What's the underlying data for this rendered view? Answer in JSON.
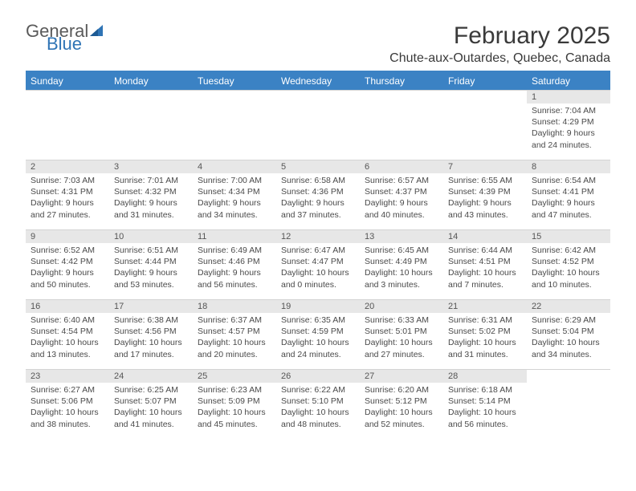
{
  "brand": {
    "word1": "General",
    "word2": "Blue",
    "color_gray": "#5a5a5a",
    "color_blue": "#2f74b5"
  },
  "title": "February 2025",
  "location": "Chute-aux-Outardes, Quebec, Canada",
  "header_bg": "#3b82c4",
  "daynum_bg": "#e7e7e7",
  "text_color": "#4a4a4a",
  "weekdays": [
    "Sunday",
    "Monday",
    "Tuesday",
    "Wednesday",
    "Thursday",
    "Friday",
    "Saturday"
  ],
  "weeks": [
    [
      null,
      null,
      null,
      null,
      null,
      null,
      {
        "n": "1",
        "sr": "7:04 AM",
        "ss": "4:29 PM",
        "dl": "9 hours and 24 minutes."
      }
    ],
    [
      {
        "n": "2",
        "sr": "7:03 AM",
        "ss": "4:31 PM",
        "dl": "9 hours and 27 minutes."
      },
      {
        "n": "3",
        "sr": "7:01 AM",
        "ss": "4:32 PM",
        "dl": "9 hours and 31 minutes."
      },
      {
        "n": "4",
        "sr": "7:00 AM",
        "ss": "4:34 PM",
        "dl": "9 hours and 34 minutes."
      },
      {
        "n": "5",
        "sr": "6:58 AM",
        "ss": "4:36 PM",
        "dl": "9 hours and 37 minutes."
      },
      {
        "n": "6",
        "sr": "6:57 AM",
        "ss": "4:37 PM",
        "dl": "9 hours and 40 minutes."
      },
      {
        "n": "7",
        "sr": "6:55 AM",
        "ss": "4:39 PM",
        "dl": "9 hours and 43 minutes."
      },
      {
        "n": "8",
        "sr": "6:54 AM",
        "ss": "4:41 PM",
        "dl": "9 hours and 47 minutes."
      }
    ],
    [
      {
        "n": "9",
        "sr": "6:52 AM",
        "ss": "4:42 PM",
        "dl": "9 hours and 50 minutes."
      },
      {
        "n": "10",
        "sr": "6:51 AM",
        "ss": "4:44 PM",
        "dl": "9 hours and 53 minutes."
      },
      {
        "n": "11",
        "sr": "6:49 AM",
        "ss": "4:46 PM",
        "dl": "9 hours and 56 minutes."
      },
      {
        "n": "12",
        "sr": "6:47 AM",
        "ss": "4:47 PM",
        "dl": "10 hours and 0 minutes."
      },
      {
        "n": "13",
        "sr": "6:45 AM",
        "ss": "4:49 PM",
        "dl": "10 hours and 3 minutes."
      },
      {
        "n": "14",
        "sr": "6:44 AM",
        "ss": "4:51 PM",
        "dl": "10 hours and 7 minutes."
      },
      {
        "n": "15",
        "sr": "6:42 AM",
        "ss": "4:52 PM",
        "dl": "10 hours and 10 minutes."
      }
    ],
    [
      {
        "n": "16",
        "sr": "6:40 AM",
        "ss": "4:54 PM",
        "dl": "10 hours and 13 minutes."
      },
      {
        "n": "17",
        "sr": "6:38 AM",
        "ss": "4:56 PM",
        "dl": "10 hours and 17 minutes."
      },
      {
        "n": "18",
        "sr": "6:37 AM",
        "ss": "4:57 PM",
        "dl": "10 hours and 20 minutes."
      },
      {
        "n": "19",
        "sr": "6:35 AM",
        "ss": "4:59 PM",
        "dl": "10 hours and 24 minutes."
      },
      {
        "n": "20",
        "sr": "6:33 AM",
        "ss": "5:01 PM",
        "dl": "10 hours and 27 minutes."
      },
      {
        "n": "21",
        "sr": "6:31 AM",
        "ss": "5:02 PM",
        "dl": "10 hours and 31 minutes."
      },
      {
        "n": "22",
        "sr": "6:29 AM",
        "ss": "5:04 PM",
        "dl": "10 hours and 34 minutes."
      }
    ],
    [
      {
        "n": "23",
        "sr": "6:27 AM",
        "ss": "5:06 PM",
        "dl": "10 hours and 38 minutes."
      },
      {
        "n": "24",
        "sr": "6:25 AM",
        "ss": "5:07 PM",
        "dl": "10 hours and 41 minutes."
      },
      {
        "n": "25",
        "sr": "6:23 AM",
        "ss": "5:09 PM",
        "dl": "10 hours and 45 minutes."
      },
      {
        "n": "26",
        "sr": "6:22 AM",
        "ss": "5:10 PM",
        "dl": "10 hours and 48 minutes."
      },
      {
        "n": "27",
        "sr": "6:20 AM",
        "ss": "5:12 PM",
        "dl": "10 hours and 52 minutes."
      },
      {
        "n": "28",
        "sr": "6:18 AM",
        "ss": "5:14 PM",
        "dl": "10 hours and 56 minutes."
      },
      null
    ]
  ],
  "labels": {
    "sunrise": "Sunrise:",
    "sunset": "Sunset:",
    "daylight": "Daylight:"
  }
}
